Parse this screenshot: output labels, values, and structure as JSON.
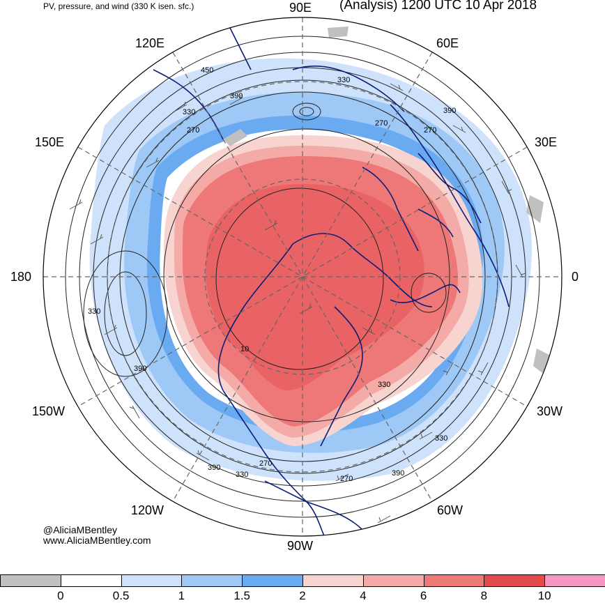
{
  "header": {
    "left_title": "PV, pressure, and wind (330 K isen. sfc.)",
    "right_title": "(Analysis) 1200 UTC 10 Apr 2018"
  },
  "longitude_labels": {
    "e90": "90E",
    "e60": "60E",
    "e30": "30E",
    "zero": "0",
    "w30": "30W",
    "w60": "60W",
    "w90": "90W",
    "w120": "120W",
    "w150": "150W",
    "lon180": "180",
    "e150": "150E",
    "e120": "120E"
  },
  "contour_labels": [
    "450",
    "390",
    "330",
    "330",
    "270",
    "270",
    "390",
    "330",
    "390",
    "330",
    "270",
    "330",
    "390",
    "270",
    "390",
    "330",
    "270",
    "10"
  ],
  "credits": {
    "handle": "@AliciaMBentley",
    "website": "www.AliciaMBentley.com"
  },
  "colorbar": {
    "ticks": [
      "0",
      "0.5",
      "1",
      "1.5",
      "2",
      "4",
      "6",
      "8",
      "10"
    ],
    "colors": [
      "#c0c0c0",
      "#ffffff",
      "#cfe2fb",
      "#9ec8f5",
      "#6aaaf0",
      "#f7d4d0",
      "#f4aaa6",
      "#ee7778",
      "#e24a4c",
      "#f596c4"
    ]
  }
}
